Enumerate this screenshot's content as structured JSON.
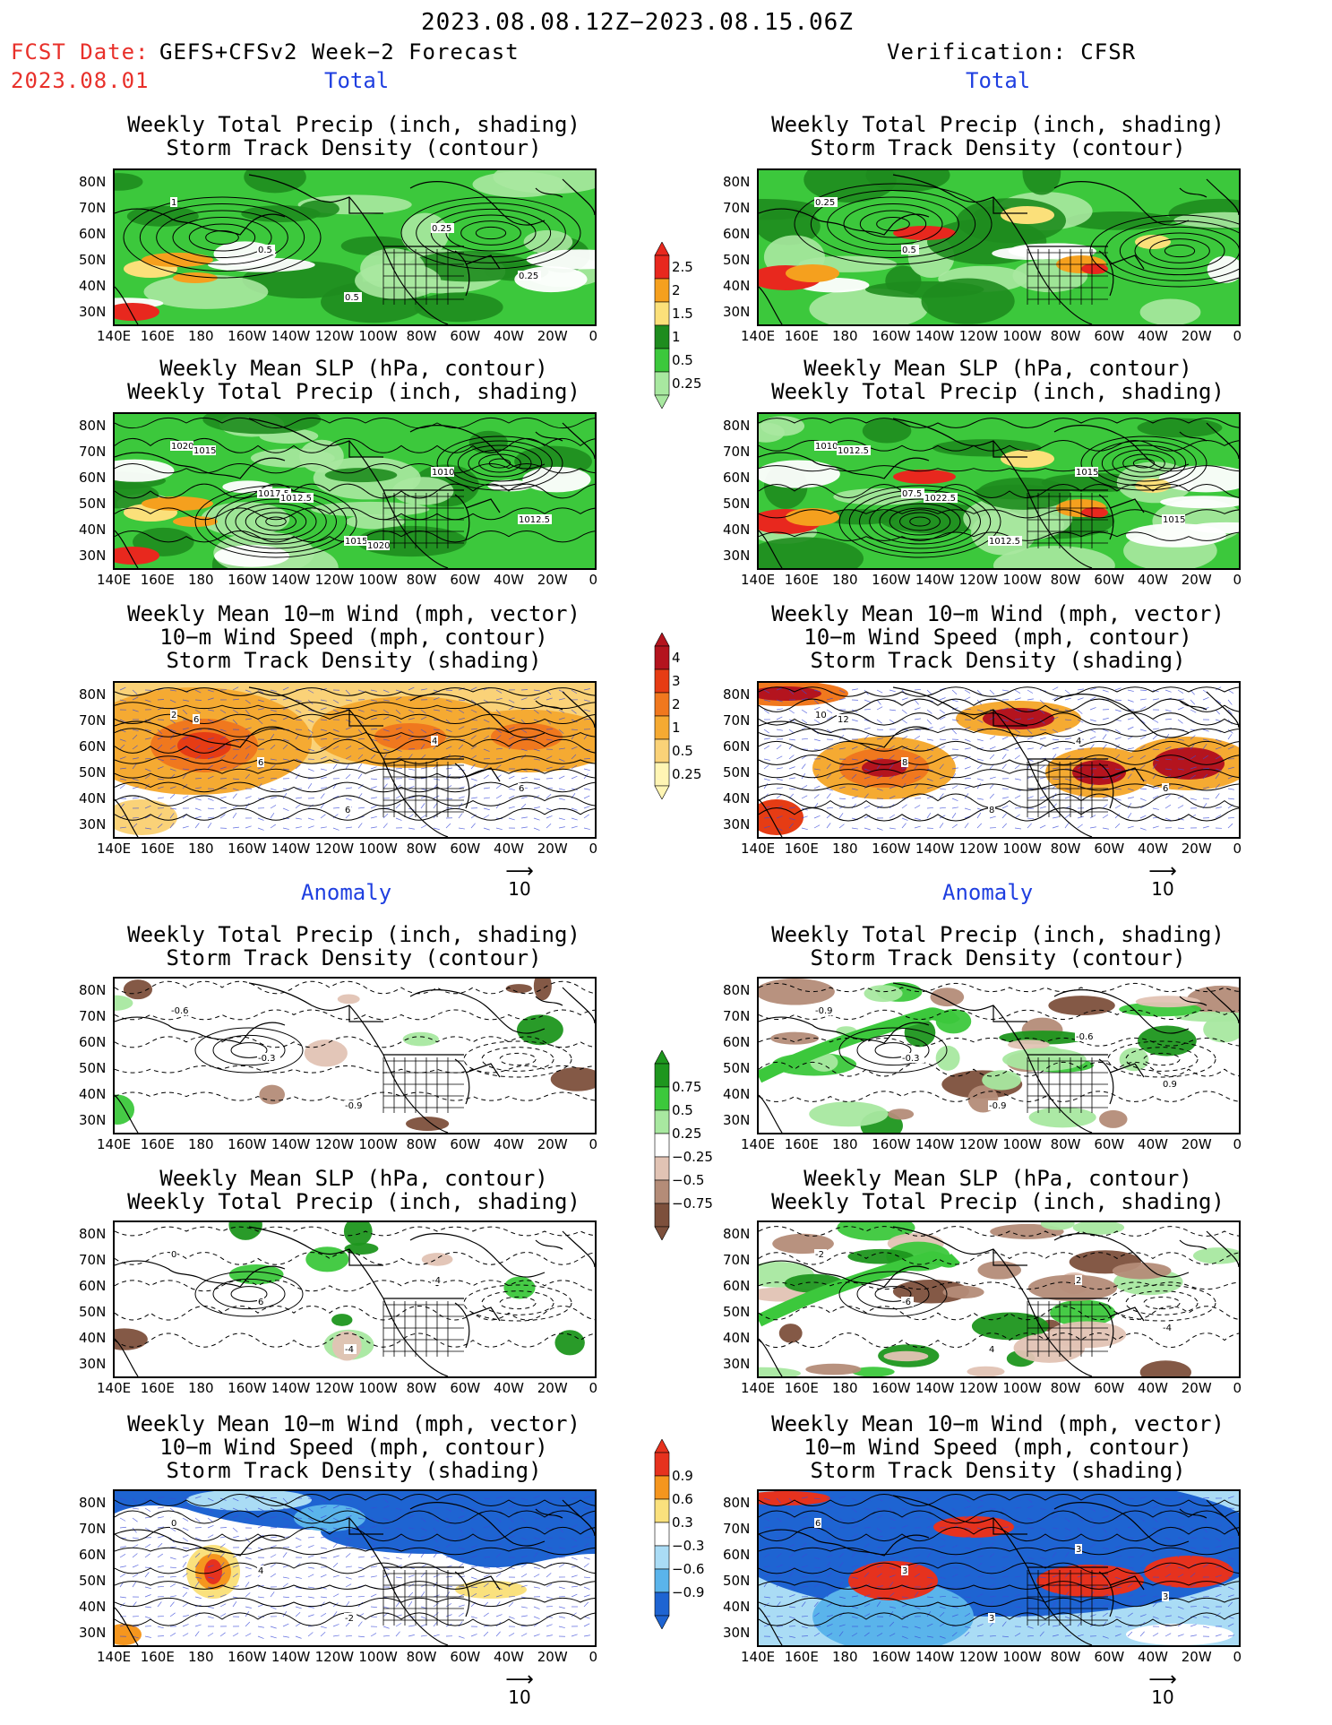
{
  "header": {
    "period": "2023.08.08.12Z−2023.08.15.06Z",
    "fcst_label": "FCST Date:",
    "fcst_source": "GEFS+CFSv2 Week−2 Forecast",
    "fcst_date": "2023.08.01",
    "verification": "Verification: CFSR"
  },
  "sections": {
    "total": "Total",
    "anomaly": "Anomaly"
  },
  "panels": {
    "precip_track": {
      "line1": "Weekly Total Precip (inch, shading)",
      "line2": "Storm Track Density (contour)"
    },
    "slp_precip": {
      "line1": "Weekly Mean SLP (hPa, contour)",
      "line2": "Weekly Total Precip (inch, shading)"
    },
    "wind": {
      "line1": "Weekly Mean 10−m Wind (mph, vector)",
      "line2": "10−m Wind Speed (mph, contour)",
      "line3": "Storm Track Density (shading)"
    }
  },
  "axes": {
    "lat_labels": [
      "80N",
      "70N",
      "60N",
      "50N",
      "40N",
      "30N"
    ],
    "lon_labels": [
      "140E",
      "160E",
      "180",
      "160W",
      "140W",
      "120W",
      "100W",
      "80W",
      "60W",
      "40W",
      "20W",
      "0"
    ]
  },
  "vector_ref": "10",
  "colorbars": {
    "total_precip": {
      "labels": [
        "2.5",
        "2",
        "1.5",
        "1",
        "0.5",
        "0.25"
      ],
      "colors": [
        "#e8281e",
        "#f5a01e",
        "#fbe07a",
        "#1e8c1e",
        "#3cc83c",
        "#a8e8a0"
      ]
    },
    "total_track": {
      "labels": [
        "4",
        "3",
        "2",
        "1",
        "0.5",
        "0.25"
      ],
      "colors": [
        "#b4141e",
        "#e63c14",
        "#f0781e",
        "#f5aa32",
        "#fad278",
        "#fff5b4"
      ]
    },
    "anom_precip": {
      "labels": [
        "0.75",
        "0.5",
        "0.25",
        "−0.25",
        "−0.5",
        "−0.75"
      ],
      "colors": [
        "#1e961e",
        "#3cc83c",
        "#a8e8a0",
        "#ffffff",
        "#e1c3b4",
        "#b48c78",
        "#7d503c"
      ]
    },
    "anom_track": {
      "labels": [
        "0.9",
        "0.6",
        "0.3",
        "−0.3",
        "−0.6",
        "−0.9"
      ],
      "colors": [
        "#e6321e",
        "#f5961e",
        "#fae17d",
        "#ffffff",
        "#aadcf5",
        "#5ab4eb",
        "#1e64d2"
      ]
    }
  },
  "contour_labels": {
    "fc_precip": [
      "1",
      "0.5",
      "0.5",
      "0.25",
      "0.25"
    ],
    "ob_precip": [
      "0.25",
      "0.5"
    ],
    "fc_slp": [
      "1020",
      "1017.5",
      "1015",
      "1010",
      "1012.5",
      "1015",
      "1012.5",
      "1020"
    ],
    "ob_slp": [
      "1010",
      "07.5",
      "1012.5",
      "1015",
      "1015",
      "1012.5",
      "1022.5"
    ],
    "fc_wind": [
      "2",
      "6",
      "6",
      "4",
      "6",
      "6"
    ],
    "ob_wind": [
      "10",
      "8",
      "8",
      "4",
      "6",
      "12"
    ],
    "fc_anom_precip": [
      "-0.6",
      "-0.3",
      "-0.9"
    ],
    "ob_anom_precip": [
      "-0.9",
      "-0.3",
      "-0.9",
      "-0.6",
      "0.9"
    ],
    "fc_anom_slp": [
      "0",
      "6",
      "-4",
      "-4"
    ],
    "ob_anom_slp": [
      "-2",
      "-6",
      "4",
      "2",
      "-4"
    ],
    "fc_anom_wind": [
      "0",
      "4",
      "-2"
    ],
    "ob_anom_wind": [
      "6",
      "3",
      "3",
      "3",
      "3"
    ]
  }
}
